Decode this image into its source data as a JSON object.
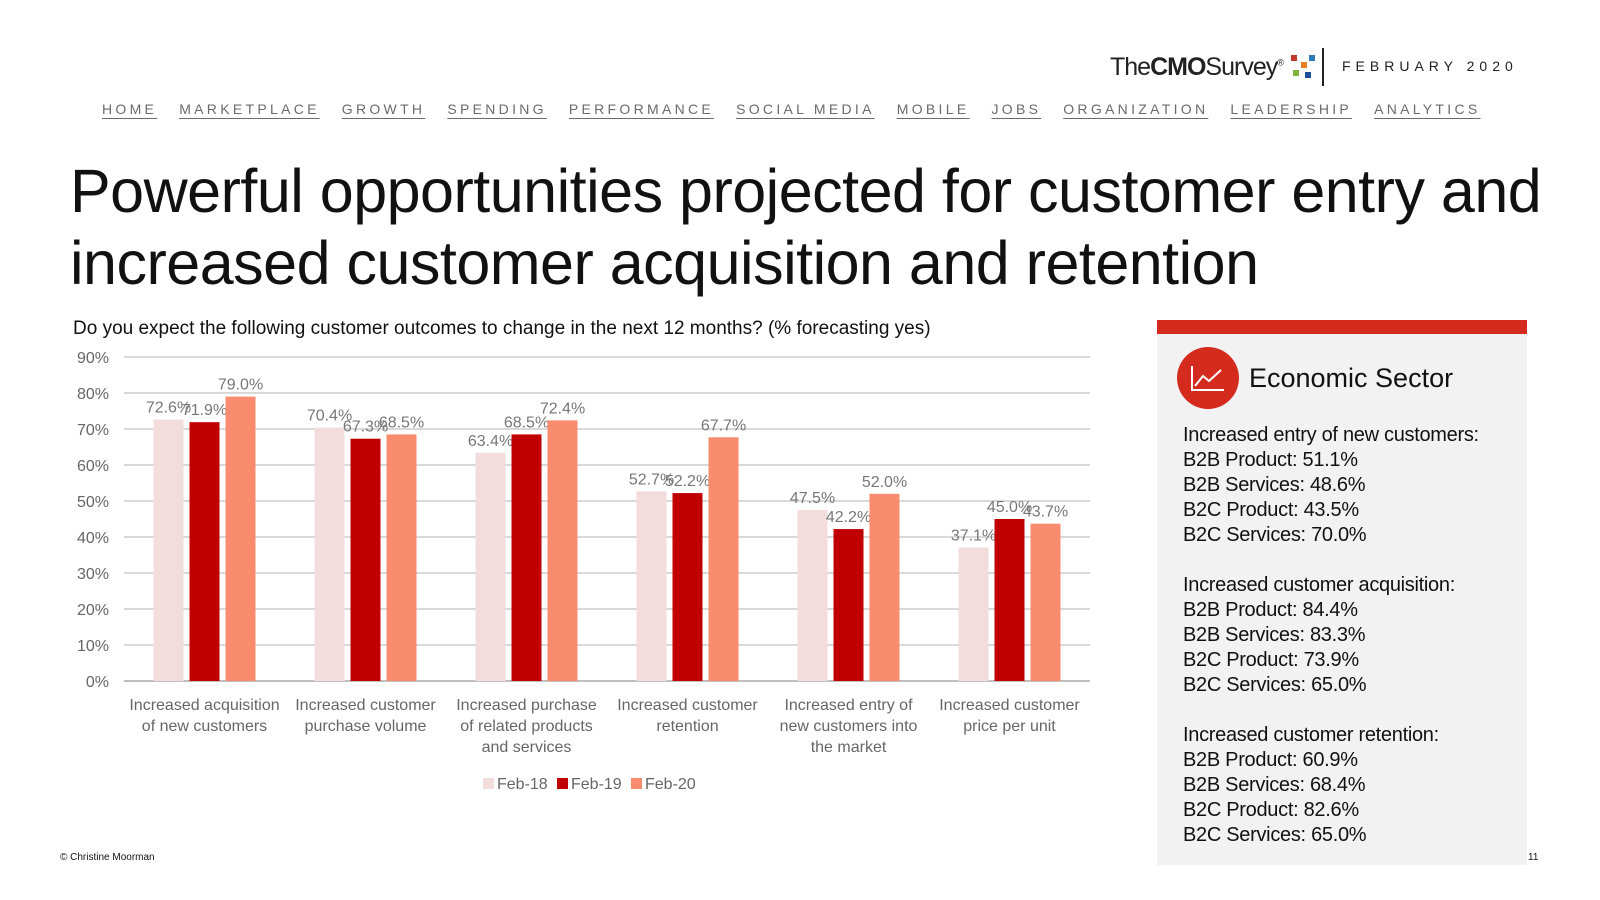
{
  "header": {
    "logo": {
      "the": "The",
      "cmo": "CMO",
      "survey": "Survey",
      "registered": "®"
    },
    "date": "FEBRUARY 2020"
  },
  "nav": {
    "items": [
      "HOME",
      "MARKETPLACE",
      "GROWTH",
      "SPENDING",
      "PERFORMANCE",
      "SOCIAL MEDIA",
      "MOBILE",
      "JOBS",
      "ORGANIZATION",
      "LEADERSHIP",
      "ANALYTICS"
    ]
  },
  "title": "Powerful opportunities projected for customer entry and increased customer acquisition and retention",
  "question": "Do you expect the following customer outcomes to change in the next 12 months? (% forecasting yes)",
  "chart_data": {
    "type": "bar",
    "categories": [
      [
        "Increased acquisition",
        "of new customers"
      ],
      [
        "Increased customer",
        "purchase volume"
      ],
      [
        "Increased purchase",
        "of related products",
        "and services"
      ],
      [
        "Increased customer",
        "retention"
      ],
      [
        "Increased entry of",
        "new customers into",
        "the market"
      ],
      [
        "Increased customer",
        "price per unit"
      ]
    ],
    "series": [
      {
        "name": "Feb-18",
        "color": "#f2dcdc",
        "values": [
          72.6,
          70.4,
          63.4,
          52.7,
          47.5,
          37.1
        ],
        "labels": [
          "72.6%",
          "70.4%",
          "63.4%",
          "52.7%",
          "47.5%",
          "37.1%"
        ]
      },
      {
        "name": "Feb-19",
        "color": "#c00000",
        "values": [
          71.9,
          67.3,
          68.5,
          52.2,
          42.2,
          45.0
        ],
        "labels": [
          "71.9%",
          "67.3%",
          "68.5%",
          "52.2%",
          "42.2%",
          "45.0%"
        ]
      },
      {
        "name": "Feb-20",
        "color": "#f98b6e",
        "values": [
          79.0,
          68.5,
          72.4,
          67.7,
          52.0,
          43.7
        ],
        "labels": [
          "79.0%",
          "68.5%",
          "72.4%",
          "67.7%",
          "52.0%",
          "43.7%"
        ]
      }
    ],
    "yticks": [
      "0%",
      "10%",
      "20%",
      "30%",
      "40%",
      "50%",
      "60%",
      "70%",
      "80%",
      "90%"
    ],
    "ylim": [
      0,
      90
    ],
    "legend_position": "bottom",
    "grid": true
  },
  "sidebar": {
    "title": "Economic Sector",
    "accent": "#d52b1e",
    "groups": [
      {
        "heading": "Increased entry of new customers:",
        "lines": [
          "B2B Product: 51.1%",
          "B2B Services: 48.6%",
          "B2C Product: 43.5%",
          "B2C Services: 70.0%"
        ]
      },
      {
        "heading": "Increased customer acquisition:",
        "lines": [
          "B2B Product: 84.4%",
          "B2B Services: 83.3%",
          "B2C Product: 73.9%",
          "B2C Services: 65.0%"
        ]
      },
      {
        "heading": "Increased customer retention:",
        "lines": [
          "B2B Product: 60.9%",
          "B2B Services: 68.4%",
          "B2C Product: 82.6%",
          "B2C Services: 65.0%"
        ]
      }
    ]
  },
  "footer": {
    "copyright": "© Christine Moorman",
    "page": "11"
  }
}
